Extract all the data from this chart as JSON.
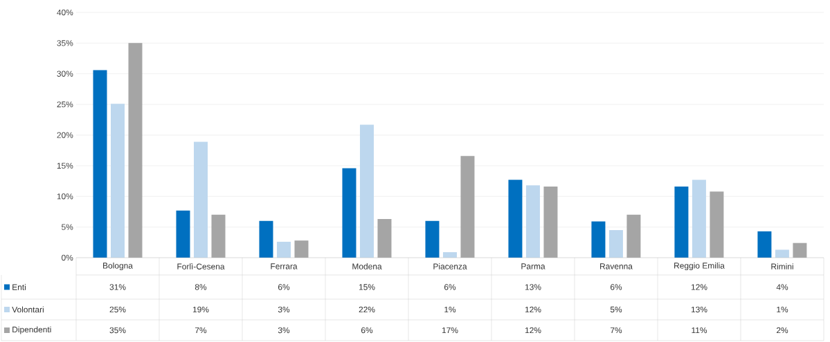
{
  "chart_data": {
    "type": "bar",
    "categories": [
      "Bologna",
      "Forlì-Cesena",
      "Ferrara",
      "Modena",
      "Piacenza",
      "Parma",
      "Ravenna",
      "Reggio Emilia",
      "Rimini"
    ],
    "series": [
      {
        "name": "Enti",
        "color": "#0070c0",
        "values": [
          30.6,
          7.7,
          6.0,
          14.6,
          6.0,
          12.7,
          5.9,
          11.6,
          4.3
        ],
        "value_labels": [
          "31%",
          "8%",
          "6%",
          "15%",
          "6%",
          "13%",
          "6%",
          "12%",
          "4%"
        ]
      },
      {
        "name": "Volontari",
        "color": "#bdd7ee",
        "values": [
          25.1,
          18.9,
          2.6,
          21.7,
          0.9,
          11.8,
          4.5,
          12.7,
          1.3
        ],
        "value_labels": [
          "25%",
          "19%",
          "3%",
          "22%",
          "1%",
          "12%",
          "5%",
          "13%",
          "1%"
        ]
      },
      {
        "name": "Dipendenti",
        "color": "#a5a5a5",
        "values": [
          35.0,
          7.0,
          2.8,
          6.3,
          16.6,
          11.6,
          7.0,
          10.8,
          2.4
        ],
        "value_labels": [
          "35%",
          "7%",
          "3%",
          "6%",
          "17%",
          "12%",
          "7%",
          "11%",
          "2%"
        ]
      }
    ],
    "ylim": [
      0,
      40
    ],
    "yticks": [
      {
        "value": 0,
        "label": "0%"
      },
      {
        "value": 5,
        "label": "5%"
      },
      {
        "value": 10,
        "label": "10%"
      },
      {
        "value": 15,
        "label": "15%"
      },
      {
        "value": 20,
        "label": "20%"
      },
      {
        "value": 25,
        "label": "25%"
      },
      {
        "value": 30,
        "label": "30%"
      },
      {
        "value": 35,
        "label": "35%"
      },
      {
        "value": 40,
        "label": "40%"
      }
    ],
    "grid": "y",
    "legend": "bottom"
  }
}
